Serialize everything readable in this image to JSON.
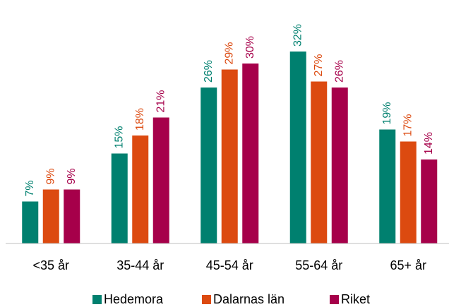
{
  "chart_data": {
    "type": "bar",
    "categories": [
      "<35 år",
      "35-44 år",
      "45-54 år",
      "55-64 år",
      "65+ år"
    ],
    "series": [
      {
        "name": "Hedemora",
        "color": "#00806f",
        "values": [
          7,
          15,
          26,
          32,
          19
        ],
        "value_labels": [
          "7%",
          "15%",
          "26%",
          "32%",
          "19%"
        ]
      },
      {
        "name": "Dalarnas län",
        "color": "#dc4a10",
        "values": [
          9,
          18,
          29,
          27,
          17
        ],
        "value_labels": [
          "9%",
          "18%",
          "29%",
          "27%",
          "17%"
        ]
      },
      {
        "name": "Riket",
        "color": "#a6004a",
        "values": [
          9,
          21,
          30,
          26,
          14
        ],
        "value_labels": [
          "9%",
          "21%",
          "30%",
          "26%",
          "14%"
        ]
      }
    ],
    "ylim": [
      0,
      40
    ],
    "legend": "bottom"
  }
}
